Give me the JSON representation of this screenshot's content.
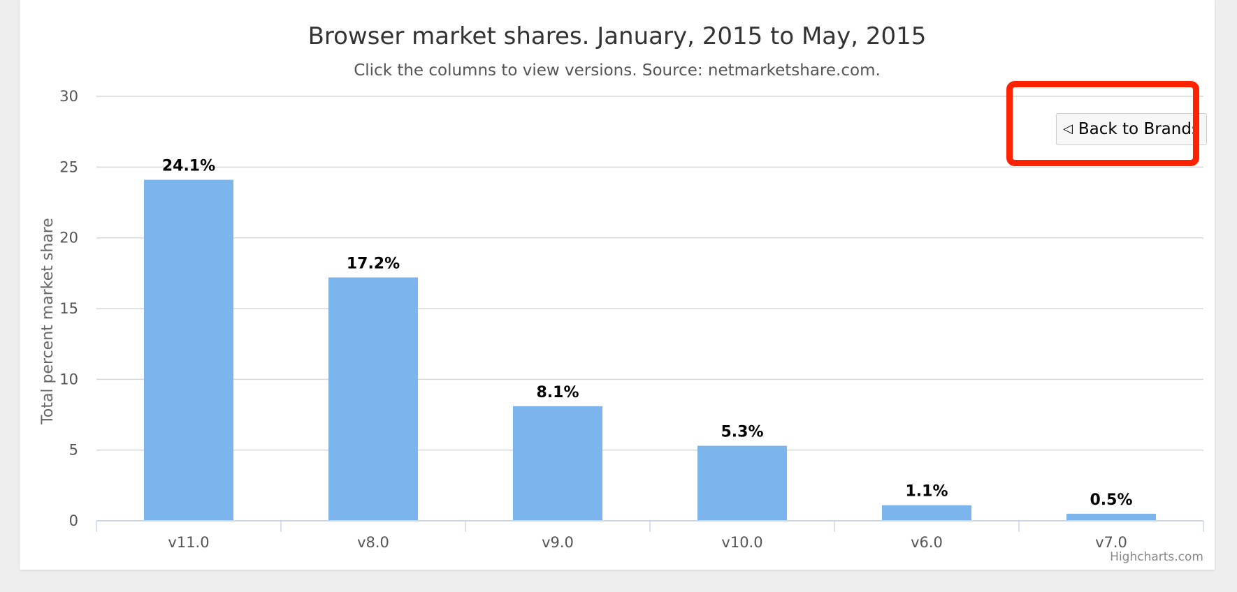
{
  "chart_data": {
    "type": "bar",
    "title": "Browser market shares. January, 2015 to May, 2015",
    "subtitle": "Click the columns to view versions. Source: netmarketshare.com.",
    "ylabel": "Total percent market share",
    "xlabel": "",
    "categories": [
      "v11.0",
      "v8.0",
      "v9.0",
      "v10.0",
      "v6.0",
      "v7.0"
    ],
    "values": [
      24.1,
      17.2,
      8.1,
      5.3,
      1.1,
      0.5
    ],
    "data_labels": [
      "24.1%",
      "17.2%",
      "8.1%",
      "5.3%",
      "1.1%",
      "0.5%"
    ],
    "yticks": [
      0,
      5,
      10,
      15,
      20,
      25,
      30
    ],
    "ylim": [
      0,
      30
    ],
    "grid": true,
    "legend": "none",
    "bar_color": "#7cb5ec"
  },
  "drilldown": {
    "back_label": "Back to Brands",
    "back_icon": "triangle-left-icon"
  },
  "credits": "Highcharts.com",
  "annotation_color": "#ff2200"
}
